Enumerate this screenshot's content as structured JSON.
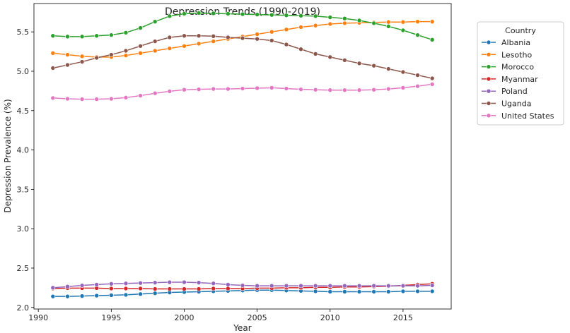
{
  "chart_data": {
    "type": "line",
    "title": "Depression Trends (1990-2019)",
    "xlabel": "Year",
    "ylabel": "Depression Prevalence (%)",
    "xlim": [
      1989.7,
      2018.3
    ],
    "ylim": [
      1.98,
      5.86
    ],
    "xticks": [
      1990,
      1995,
      2000,
      2005,
      2010,
      2015
    ],
    "xtick_labels": [
      "1990",
      "1995",
      "2000",
      "2005",
      "2010",
      "2015"
    ],
    "yticks": [
      2.0,
      2.5,
      3.0,
      3.5,
      4.0,
      4.5,
      5.0,
      5.5
    ],
    "ytick_labels": [
      "2.0",
      "2.5",
      "3.0",
      "3.5",
      "4.0",
      "4.5",
      "5.0",
      "5.5"
    ],
    "grid": false,
    "legend": {
      "title": "Country",
      "placement": "outside-top-right"
    },
    "x": [
      1991,
      1992,
      1993,
      1994,
      1995,
      1996,
      1997,
      1998,
      1999,
      2000,
      2001,
      2002,
      2003,
      2004,
      2005,
      2006,
      2007,
      2008,
      2009,
      2010,
      2011,
      2012,
      2013,
      2014,
      2015,
      2016,
      2017
    ],
    "series": [
      {
        "name": "Albania",
        "color": "#1f77b4",
        "values": [
          2.14,
          2.14,
          2.145,
          2.15,
          2.155,
          2.16,
          2.17,
          2.18,
          2.19,
          2.195,
          2.2,
          2.205,
          2.21,
          2.215,
          2.22,
          2.22,
          2.215,
          2.21,
          2.205,
          2.2,
          2.2,
          2.2,
          2.2,
          2.2,
          2.205,
          2.205,
          2.205
        ]
      },
      {
        "name": "Lesotho",
        "color": "#ff7f0e",
        "values": [
          5.23,
          5.21,
          5.19,
          5.18,
          5.18,
          5.2,
          5.23,
          5.26,
          5.29,
          5.32,
          5.35,
          5.38,
          5.41,
          5.44,
          5.47,
          5.5,
          5.53,
          5.56,
          5.58,
          5.6,
          5.61,
          5.615,
          5.62,
          5.625,
          5.625,
          5.63,
          5.63
        ]
      },
      {
        "name": "Morocco",
        "color": "#2ca02c",
        "values": [
          5.45,
          5.44,
          5.44,
          5.45,
          5.46,
          5.49,
          5.55,
          5.63,
          5.7,
          5.73,
          5.74,
          5.735,
          5.73,
          5.725,
          5.72,
          5.715,
          5.71,
          5.705,
          5.7,
          5.685,
          5.67,
          5.645,
          5.61,
          5.57,
          5.52,
          5.46,
          5.4
        ]
      },
      {
        "name": "Myanmar",
        "color": "#d62728",
        "values": [
          2.24,
          2.245,
          2.245,
          2.245,
          2.24,
          2.24,
          2.24,
          2.235,
          2.235,
          2.235,
          2.235,
          2.24,
          2.24,
          2.24,
          2.245,
          2.245,
          2.25,
          2.25,
          2.255,
          2.255,
          2.26,
          2.26,
          2.265,
          2.27,
          2.28,
          2.29,
          2.3
        ]
      },
      {
        "name": "Poland",
        "color": "#9467bd",
        "values": [
          2.25,
          2.265,
          2.28,
          2.29,
          2.3,
          2.305,
          2.31,
          2.315,
          2.32,
          2.32,
          2.315,
          2.305,
          2.29,
          2.28,
          2.275,
          2.275,
          2.275,
          2.275,
          2.275,
          2.275,
          2.275,
          2.275,
          2.275,
          2.275,
          2.275,
          2.275,
          2.28
        ]
      },
      {
        "name": "Uganda",
        "color": "#8c564b",
        "values": [
          5.04,
          5.08,
          5.12,
          5.17,
          5.21,
          5.26,
          5.32,
          5.38,
          5.43,
          5.45,
          5.45,
          5.445,
          5.43,
          5.42,
          5.41,
          5.39,
          5.34,
          5.28,
          5.22,
          5.18,
          5.14,
          5.1,
          5.07,
          5.03,
          4.99,
          4.95,
          4.91
        ]
      },
      {
        "name": "United States",
        "color": "#e377c2",
        "values": [
          4.66,
          4.65,
          4.645,
          4.645,
          4.65,
          4.665,
          4.69,
          4.72,
          4.745,
          4.765,
          4.77,
          4.775,
          4.775,
          4.78,
          4.785,
          4.79,
          4.78,
          4.77,
          4.765,
          4.76,
          4.76,
          4.76,
          4.765,
          4.775,
          4.79,
          4.81,
          4.835
        ]
      }
    ]
  }
}
